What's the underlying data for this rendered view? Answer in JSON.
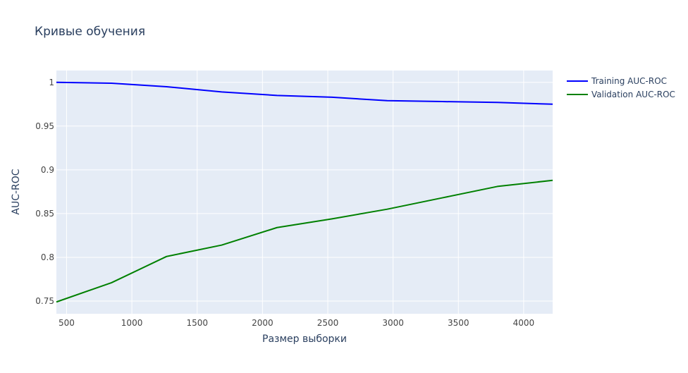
{
  "chart_data": {
    "type": "line",
    "title": "Кривые обучения",
    "xlabel": "Размер выборки",
    "ylabel": "AUC-ROC",
    "xlim": [
      422,
      4222
    ],
    "ylim": [
      0.7355,
      1.0135
    ],
    "x_ticks": [
      500,
      1000,
      1500,
      2000,
      2500,
      3000,
      3500,
      4000
    ],
    "x_tick_labels": [
      "500",
      "1000",
      "1500",
      "2000",
      "2500",
      "3000",
      "3500",
      "4000"
    ],
    "y_ticks": [
      0.75,
      0.8,
      0.85,
      0.9,
      0.95,
      1
    ],
    "y_tick_labels": [
      "0.75",
      "0.8",
      "0.85",
      "0.9",
      "0.95",
      "1"
    ],
    "grid": true,
    "legend_position": "top-right-outside",
    "x": [
      422,
      844,
      1266,
      1688,
      2111,
      2533,
      2955,
      3377,
      3799,
      4222
    ],
    "series": [
      {
        "name": "Training AUC-ROC",
        "color": "#0000ff",
        "values": [
          1.0,
          0.999,
          0.995,
          0.989,
          0.985,
          0.983,
          0.979,
          0.978,
          0.977,
          0.975
        ]
      },
      {
        "name": "Validation AUC-ROC",
        "color": "#008000",
        "values": [
          0.749,
          0.771,
          0.801,
          0.814,
          0.834,
          0.844,
          0.855,
          0.868,
          0.881,
          0.888
        ]
      }
    ],
    "colors": {
      "plot_background": "#e5ecf6",
      "grid": "#ffffff",
      "text": "#2a3f5f",
      "tick_text": "#444444"
    }
  }
}
